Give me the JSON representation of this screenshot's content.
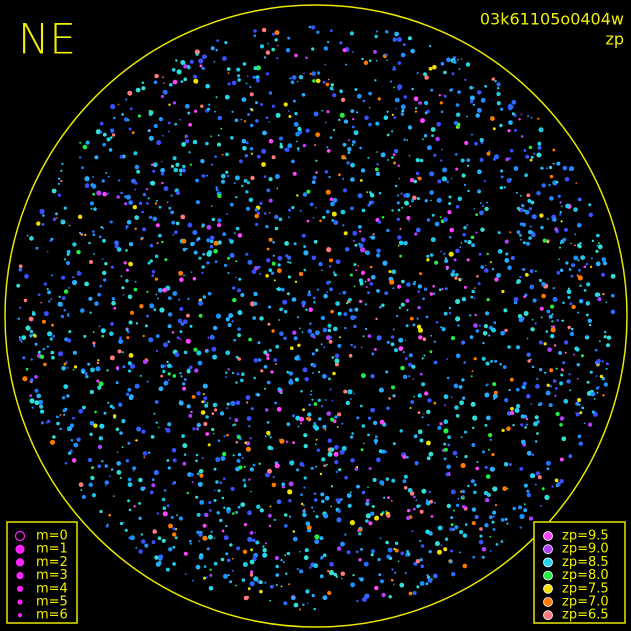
{
  "header": {
    "direction": "NE",
    "frame_id": "03k61105o0404w",
    "mode": "zp"
  },
  "magnitude_legend": [
    {
      "label": "m=0",
      "size": 4.5,
      "hollow": true
    },
    {
      "label": "m=1",
      "size": 4
    },
    {
      "label": "m=2",
      "size": 3.5
    },
    {
      "label": "m=3",
      "size": 3
    },
    {
      "label": "m=4",
      "size": 2.5
    },
    {
      "label": "m=5",
      "size": 2
    },
    {
      "label": "m=6",
      "size": 1.5
    }
  ],
  "zp_legend": [
    {
      "label": "zp=9.5",
      "color": "#ff44ff"
    },
    {
      "label": "zp=9.0",
      "color": "#b040ff"
    },
    {
      "label": "zp=8.5",
      "color": "#22d8f0"
    },
    {
      "label": "zp=8.0",
      "color": "#22ee44"
    },
    {
      "label": "zp=7.5",
      "color": "#f0e000"
    },
    {
      "label": "zp=7.0",
      "color": "#ff7a00"
    },
    {
      "label": "zp=6.5",
      "color": "#ff7a7a"
    }
  ]
}
